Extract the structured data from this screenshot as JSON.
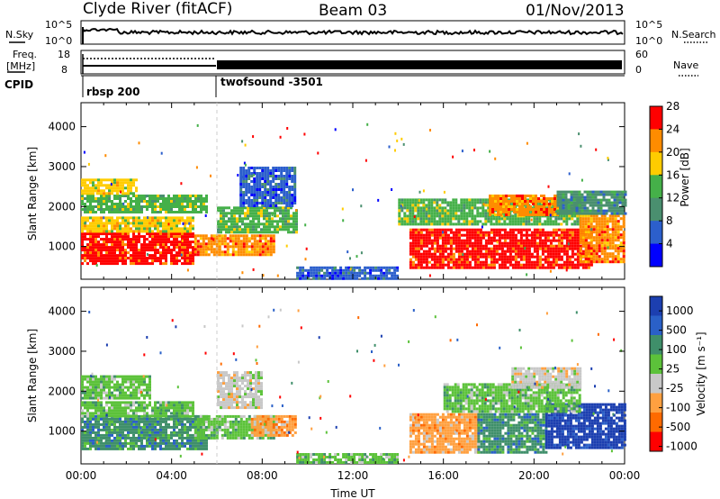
{
  "header": {
    "title": "Clyde River (fitACF)",
    "beam": "Beam 03",
    "date": "01/Nov/2013"
  },
  "noise_panel": {
    "left_label": "N.Sky",
    "right_label": "N.Search",
    "left_ticks": [
      "10^5",
      "10^0"
    ],
    "right_ticks": [
      "10^5",
      "10^0"
    ]
  },
  "freq_panel": {
    "left_label_1": "Freq.",
    "left_label_2": "[MHz]",
    "left_ticks": [
      "18",
      "8"
    ],
    "right_label": "Nave",
    "right_ticks": [
      "60",
      "0"
    ]
  },
  "cpid_panel": {
    "label": "CPID",
    "programs": [
      {
        "name": "rbsp 200",
        "start_hour": 0
      },
      {
        "name": "twofsound -3501",
        "start_hour": 6
      }
    ]
  },
  "chart_data": [
    {
      "type": "heatmap",
      "name": "power",
      "ylabel": "Slant Range [km]",
      "xlabel": "",
      "xlim": [
        0,
        24
      ],
      "ylim": [
        180,
        4600
      ],
      "yticks": [
        "1000",
        "2000",
        "3000",
        "4000"
      ],
      "colorbar": {
        "label": "Power [dB]",
        "ticks": [
          "4",
          "8",
          "12",
          "16",
          "20",
          "24",
          "28"
        ],
        "colors": [
          "#0000ff",
          "#2c5fcc",
          "#4a8f6f",
          "#45b049",
          "#ffcc00",
          "#ff8c00",
          "#ff0000"
        ]
      },
      "regions": [
        {
          "t0": 0.0,
          "t1": 5.0,
          "r0": 600,
          "r1": 1350,
          "level": 6
        },
        {
          "t0": 0.0,
          "t1": 5.0,
          "r0": 1400,
          "r1": 1750,
          "level": 4
        },
        {
          "t0": 0.0,
          "t1": 5.5,
          "r0": 1850,
          "r1": 2300,
          "level": 3
        },
        {
          "t0": 0.0,
          "t1": 2.5,
          "r0": 2300,
          "r1": 2700,
          "level": 4
        },
        {
          "t0": 5.0,
          "t1": 8.5,
          "r0": 800,
          "r1": 1300,
          "level": 5
        },
        {
          "t0": 6.0,
          "t1": 9.5,
          "r0": 1350,
          "r1": 2000,
          "level": 3
        },
        {
          "t0": 7.0,
          "t1": 9.5,
          "r0": 2000,
          "r1": 3000,
          "level": 1
        },
        {
          "t0": 9.5,
          "t1": 14.0,
          "r0": 200,
          "r1": 500,
          "level": 1
        },
        {
          "t0": 14.5,
          "t1": 22.5,
          "r0": 500,
          "r1": 1450,
          "level": 6
        },
        {
          "t0": 14.0,
          "t1": 22.0,
          "r0": 1550,
          "r1": 2200,
          "level": 3
        },
        {
          "t0": 18.0,
          "t1": 21.0,
          "r0": 1800,
          "r1": 2300,
          "level": 5
        },
        {
          "t0": 22.0,
          "t1": 24.0,
          "r0": 600,
          "r1": 1800,
          "level": 5
        },
        {
          "t0": 21.0,
          "t1": 24.0,
          "r0": 1800,
          "r1": 2400,
          "level": 2
        }
      ]
    },
    {
      "type": "heatmap",
      "name": "velocity",
      "ylabel": "Slant Range [km]",
      "xlabel": "Time UT",
      "xlim": [
        0,
        24
      ],
      "ylim": [
        180,
        4600
      ],
      "yticks": [
        "1000",
        "2000",
        "3000",
        "4000"
      ],
      "xticks": [
        "00:00",
        "04:00",
        "08:00",
        "12:00",
        "16:00",
        "20:00",
        "00:00"
      ],
      "colorbar": {
        "label": "Velocity [m s⁻¹]",
        "ticks": [
          "1000",
          "500",
          "100",
          "25",
          "-25",
          "-100",
          "-500",
          "-1000"
        ],
        "colors": [
          "#1c3fb0",
          "#2a60c8",
          "#3f8f6a",
          "#5cc23a",
          "#c8c8c8",
          "#ffa040",
          "#ff6a00",
          "#ff0000"
        ]
      },
      "regions": [
        {
          "t0": 0.0,
          "t1": 5.5,
          "r0": 550,
          "r1": 1400,
          "level": 2
        },
        {
          "t0": 0.0,
          "t1": 5.0,
          "r0": 1400,
          "r1": 1750,
          "level": 3
        },
        {
          "t0": 0.0,
          "t1": 3.0,
          "r0": 1850,
          "r1": 2400,
          "level": 3
        },
        {
          "t0": 5.0,
          "t1": 8.5,
          "r0": 800,
          "r1": 1400,
          "level": 3
        },
        {
          "t0": 6.0,
          "t1": 8.0,
          "r0": 1600,
          "r1": 2500,
          "level": 4
        },
        {
          "t0": 7.5,
          "t1": 9.5,
          "r0": 900,
          "r1": 1400,
          "level": 5
        },
        {
          "t0": 9.5,
          "t1": 14.0,
          "r0": 200,
          "r1": 450,
          "level": 3
        },
        {
          "t0": 14.5,
          "t1": 17.5,
          "r0": 500,
          "r1": 1450,
          "level": 5
        },
        {
          "t0": 17.5,
          "t1": 20.5,
          "r0": 500,
          "r1": 1450,
          "level": 2
        },
        {
          "t0": 20.5,
          "t1": 24.0,
          "r0": 600,
          "r1": 1700,
          "level": 0
        },
        {
          "t0": 16.0,
          "t1": 22.0,
          "r0": 1500,
          "r1": 2200,
          "level": 3
        },
        {
          "t0": 19.0,
          "t1": 22.0,
          "r0": 2100,
          "r1": 2600,
          "level": 4
        }
      ]
    }
  ],
  "colors": {
    "axis": "#000000",
    "background": "#ffffff"
  }
}
